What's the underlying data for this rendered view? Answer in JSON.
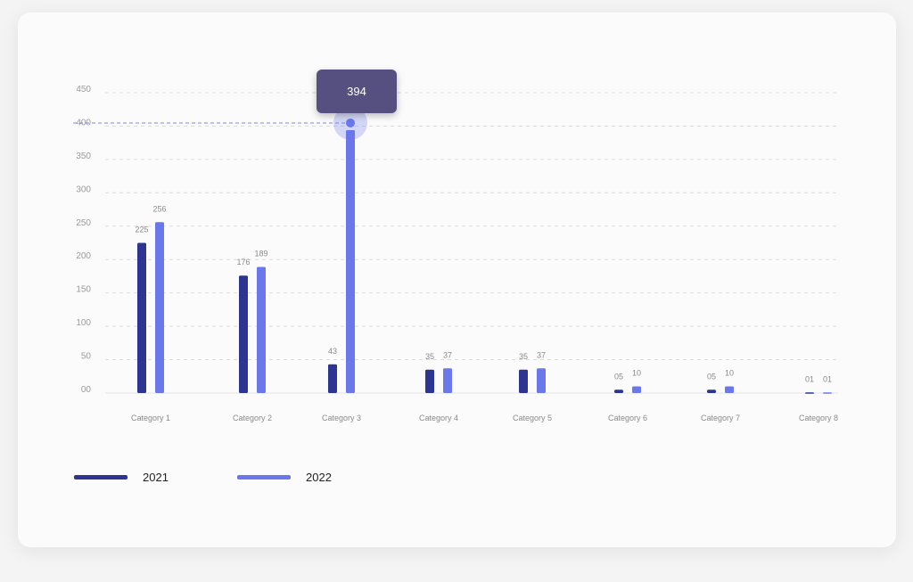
{
  "chart_data": {
    "type": "bar",
    "categories": [
      "Category 1",
      "Category 2",
      "Category 3",
      "Category 4",
      "Category 5",
      "Category 6",
      "Category 7",
      "Category 8"
    ],
    "series": [
      {
        "name": "2021",
        "color": "#2d3593",
        "values": [
          225,
          176,
          43,
          35,
          35,
          5,
          5,
          1
        ],
        "labels": [
          "225",
          "176",
          "43",
          "35",
          "35",
          "05",
          "05",
          "01"
        ]
      },
      {
        "name": "2022",
        "color": "#6a78ec",
        "values": [
          256,
          189,
          394,
          37,
          37,
          10,
          10,
          1
        ],
        "labels": [
          "256",
          "189",
          "",
          "37",
          "37",
          "10",
          "10",
          "01"
        ]
      }
    ],
    "yticks": [
      "00",
      "50",
      "100",
      "150",
      "200",
      "250",
      "300",
      "350",
      "400",
      "450"
    ],
    "ylim": [
      0,
      450
    ],
    "grid": true,
    "legend": "bottom-left",
    "tooltip": {
      "category": "Category 3",
      "series": "2022",
      "value": "394"
    }
  }
}
